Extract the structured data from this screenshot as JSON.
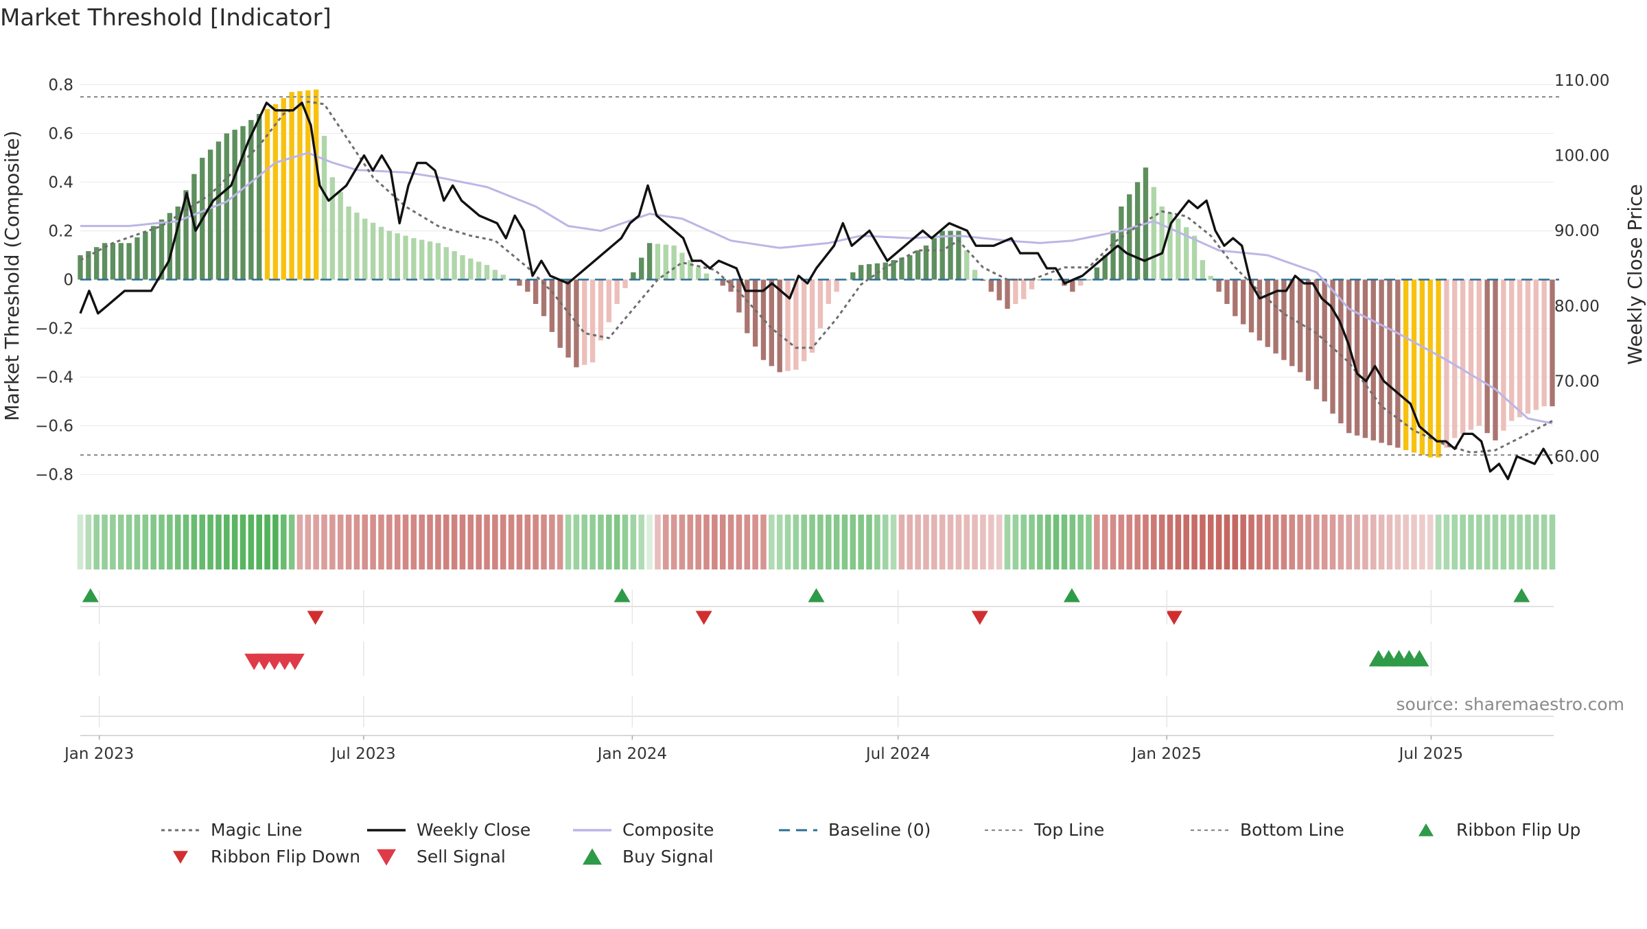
{
  "chart_data": {
    "type": "bar",
    "title": "Market Threshold [Indicator]",
    "ylabel": "Market Threshold (Composite)",
    "y2label": "Weekly Close Price",
    "ylim": [
      -0.88,
      0.88
    ],
    "y2lim": [
      55.0,
      112.0
    ],
    "yticks": [
      0.8,
      0.6,
      0.4,
      0.2,
      0,
      -0.2,
      -0.4,
      -0.6,
      -0.8
    ],
    "ytick_labels": [
      "0.8",
      "0.6",
      "0.4",
      "0.2",
      "0",
      "−0.2",
      "−0.4",
      "−0.6",
      "−0.8"
    ],
    "y2ticks": [
      110,
      100,
      90,
      80,
      70,
      60
    ],
    "y2tick_labels": [
      "110.00",
      "100.00",
      "90.00",
      "80.00",
      "70.00",
      "60.00"
    ],
    "x_date_range": [
      "2022-12-19",
      "2025-09-22"
    ],
    "xticks": [
      {
        "date": "2023-01-01",
        "label": "Jan 2023"
      },
      {
        "date": "2023-07-01",
        "label": "Jul 2023"
      },
      {
        "date": "2024-01-01",
        "label": "Jan 2024"
      },
      {
        "date": "2024-07-01",
        "label": "Jul 2024"
      },
      {
        "date": "2025-01-01",
        "label": "Jan 2025"
      },
      {
        "date": "2025-07-01",
        "label": "Jul 2025"
      }
    ],
    "top_line": 0.75,
    "bottom_line": -0.72,
    "baseline": 0,
    "composite_anchors": [
      [
        0,
        0.1
      ],
      [
        3,
        0.15
      ],
      [
        6,
        0.15
      ],
      [
        9,
        0.22
      ],
      [
        12,
        0.3
      ],
      [
        15,
        0.5
      ],
      [
        18,
        0.6
      ],
      [
        20,
        0.63
      ],
      [
        22,
        0.68
      ],
      [
        24,
        0.72
      ],
      [
        26,
        0.77
      ],
      [
        29,
        0.78
      ],
      [
        30,
        0.59
      ],
      [
        31,
        0.42
      ],
      [
        33,
        0.3
      ],
      [
        35,
        0.25
      ],
      [
        38,
        0.2
      ],
      [
        41,
        0.17
      ],
      [
        44,
        0.15
      ],
      [
        47,
        0.1
      ],
      [
        50,
        0.06
      ],
      [
        53,
        0.0
      ],
      [
        55,
        -0.05
      ],
      [
        57,
        -0.15
      ],
      [
        59,
        -0.28
      ],
      [
        61,
        -0.36
      ],
      [
        63,
        -0.34
      ],
      [
        64,
        -0.25
      ],
      [
        66,
        -0.1
      ],
      [
        68,
        0.03
      ],
      [
        70,
        0.15
      ],
      [
        73,
        0.14
      ],
      [
        76,
        0.05
      ],
      [
        78,
        0.0
      ],
      [
        80,
        -0.05
      ],
      [
        82,
        -0.22
      ],
      [
        84,
        -0.33
      ],
      [
        86,
        -0.38
      ],
      [
        88,
        -0.37
      ],
      [
        90,
        -0.3
      ],
      [
        92,
        -0.1
      ],
      [
        94,
        0.0
      ],
      [
        96,
        0.06
      ],
      [
        99,
        0.07
      ],
      [
        102,
        0.1
      ],
      [
        104,
        0.14
      ],
      [
        106,
        0.2
      ],
      [
        108,
        0.2
      ],
      [
        110,
        0.04
      ],
      [
        112,
        -0.05
      ],
      [
        114,
        -0.12
      ],
      [
        116,
        -0.08
      ],
      [
        118,
        0.0
      ],
      [
        120,
        0.0
      ],
      [
        122,
        -0.05
      ],
      [
        124,
        0.0
      ],
      [
        126,
        0.1
      ],
      [
        128,
        0.3
      ],
      [
        130,
        0.4
      ],
      [
        131,
        0.46
      ],
      [
        133,
        0.3
      ],
      [
        135,
        0.25
      ],
      [
        137,
        0.18
      ],
      [
        138,
        0.08
      ],
      [
        140,
        -0.05
      ],
      [
        142,
        -0.15
      ],
      [
        145,
        -0.25
      ],
      [
        148,
        -0.33
      ],
      [
        150,
        -0.38
      ],
      [
        152,
        -0.45
      ],
      [
        154,
        -0.55
      ],
      [
        156,
        -0.63
      ],
      [
        158,
        -0.65
      ],
      [
        160,
        -0.67
      ],
      [
        163,
        -0.7
      ],
      [
        166,
        -0.73
      ],
      [
        167,
        -0.73
      ],
      [
        169,
        -0.65
      ],
      [
        172,
        -0.6
      ],
      [
        174,
        -0.66
      ],
      [
        176,
        -0.58
      ],
      [
        178,
        -0.55
      ],
      [
        180,
        -0.52
      ]
    ],
    "composite_line_anchors": [
      [
        0,
        0.22
      ],
      [
        6,
        0.22
      ],
      [
        12,
        0.24
      ],
      [
        18,
        0.32
      ],
      [
        24,
        0.48
      ],
      [
        28,
        0.52
      ],
      [
        31,
        0.48
      ],
      [
        34,
        0.45
      ],
      [
        40,
        0.44
      ],
      [
        44,
        0.42
      ],
      [
        50,
        0.38
      ],
      [
        56,
        0.3
      ],
      [
        60,
        0.22
      ],
      [
        64,
        0.2
      ],
      [
        70,
        0.27
      ],
      [
        74,
        0.25
      ],
      [
        80,
        0.16
      ],
      [
        86,
        0.13
      ],
      [
        92,
        0.15
      ],
      [
        96,
        0.18
      ],
      [
        102,
        0.17
      ],
      [
        108,
        0.18
      ],
      [
        114,
        0.16
      ],
      [
        118,
        0.15
      ],
      [
        122,
        0.16
      ],
      [
        128,
        0.2
      ],
      [
        132,
        0.24
      ],
      [
        136,
        0.18
      ],
      [
        140,
        0.12
      ],
      [
        146,
        0.1
      ],
      [
        152,
        0.03
      ],
      [
        156,
        -0.12
      ],
      [
        162,
        -0.22
      ],
      [
        168,
        -0.33
      ],
      [
        174,
        -0.45
      ],
      [
        178,
        -0.57
      ],
      [
        181,
        -0.59
      ]
    ],
    "magic_line_anchors": [
      [
        0,
        0.08
      ],
      [
        4,
        0.15
      ],
      [
        10,
        0.22
      ],
      [
        16,
        0.35
      ],
      [
        22,
        0.55
      ],
      [
        25,
        0.68
      ],
      [
        28,
        0.73
      ],
      [
        30,
        0.72
      ],
      [
        32,
        0.62
      ],
      [
        36,
        0.42
      ],
      [
        40,
        0.3
      ],
      [
        44,
        0.22
      ],
      [
        48,
        0.18
      ],
      [
        51,
        0.16
      ],
      [
        55,
        0.05
      ],
      [
        58,
        -0.05
      ],
      [
        62,
        -0.22
      ],
      [
        65,
        -0.24
      ],
      [
        68,
        -0.12
      ],
      [
        71,
        0.0
      ],
      [
        74,
        0.07
      ],
      [
        78,
        0.04
      ],
      [
        81,
        -0.05
      ],
      [
        85,
        -0.2
      ],
      [
        88,
        -0.28
      ],
      [
        90,
        -0.28
      ],
      [
        93,
        -0.16
      ],
      [
        96,
        -0.02
      ],
      [
        99,
        0.05
      ],
      [
        103,
        0.12
      ],
      [
        106,
        0.12
      ],
      [
        108,
        0.16
      ],
      [
        111,
        0.05
      ],
      [
        114,
        0.0
      ],
      [
        117,
        0.0
      ],
      [
        121,
        0.05
      ],
      [
        124,
        0.05
      ],
      [
        127,
        0.15
      ],
      [
        130,
        0.22
      ],
      [
        133,
        0.28
      ],
      [
        136,
        0.26
      ],
      [
        139,
        0.18
      ],
      [
        142,
        0.05
      ],
      [
        145,
        -0.05
      ],
      [
        148,
        -0.14
      ],
      [
        152,
        -0.22
      ],
      [
        156,
        -0.34
      ],
      [
        160,
        -0.52
      ],
      [
        164,
        -0.62
      ],
      [
        168,
        -0.68
      ],
      [
        171,
        -0.71
      ],
      [
        174,
        -0.7
      ],
      [
        177,
        -0.65
      ],
      [
        181,
        -0.58
      ]
    ],
    "weekly_close_anchors": [
      [
        0,
        79
      ],
      [
        1,
        82
      ],
      [
        2,
        79
      ],
      [
        3,
        80
      ],
      [
        5,
        82
      ],
      [
        8,
        82
      ],
      [
        10,
        86
      ],
      [
        12,
        95
      ],
      [
        13,
        90
      ],
      [
        15,
        94
      ],
      [
        17,
        96
      ],
      [
        19,
        102
      ],
      [
        21,
        107
      ],
      [
        22,
        106
      ],
      [
        24,
        106
      ],
      [
        25,
        107
      ],
      [
        26,
        104
      ],
      [
        27,
        96
      ],
      [
        28,
        94
      ],
      [
        30,
        96
      ],
      [
        32,
        100
      ],
      [
        33,
        98
      ],
      [
        34,
        100
      ],
      [
        35,
        98
      ],
      [
        36,
        91
      ],
      [
        37,
        96
      ],
      [
        38,
        99
      ],
      [
        39,
        99
      ],
      [
        40,
        98
      ],
      [
        41,
        94
      ],
      [
        42,
        96
      ],
      [
        43,
        94
      ],
      [
        45,
        92
      ],
      [
        47,
        91
      ],
      [
        48,
        89
      ],
      [
        49,
        92
      ],
      [
        50,
        90
      ],
      [
        51,
        84
      ],
      [
        52,
        86
      ],
      [
        53,
        84
      ],
      [
        55,
        83
      ],
      [
        57,
        85
      ],
      [
        59,
        87
      ],
      [
        61,
        89
      ],
      [
        62,
        91
      ],
      [
        63,
        92
      ],
      [
        64,
        96
      ],
      [
        65,
        92
      ],
      [
        67,
        90
      ],
      [
        68,
        89
      ],
      [
        69,
        86
      ],
      [
        70,
        86
      ],
      [
        71,
        85
      ],
      [
        72,
        86
      ],
      [
        74,
        85
      ],
      [
        75,
        82
      ],
      [
        77,
        82
      ],
      [
        78,
        83
      ],
      [
        80,
        81
      ],
      [
        81,
        84
      ],
      [
        82,
        83
      ],
      [
        83,
        85
      ],
      [
        85,
        88
      ],
      [
        86,
        91
      ],
      [
        87,
        88
      ],
      [
        88,
        89
      ],
      [
        89,
        90
      ],
      [
        90,
        88
      ],
      [
        91,
        86
      ],
      [
        93,
        88
      ],
      [
        95,
        90
      ],
      [
        96,
        89
      ],
      [
        98,
        91
      ],
      [
        100,
        90
      ],
      [
        101,
        88
      ],
      [
        103,
        88
      ],
      [
        105,
        89
      ],
      [
        106,
        87
      ],
      [
        108,
        87
      ],
      [
        109,
        85
      ],
      [
        110,
        85
      ],
      [
        111,
        83
      ],
      [
        113,
        84
      ],
      [
        115,
        86
      ],
      [
        117,
        88
      ],
      [
        118,
        87
      ],
      [
        120,
        86
      ],
      [
        122,
        87
      ],
      [
        123,
        91
      ],
      [
        125,
        94
      ],
      [
        126,
        93
      ],
      [
        127,
        94
      ],
      [
        128,
        90
      ],
      [
        129,
        88
      ],
      [
        130,
        89
      ],
      [
        131,
        88
      ],
      [
        132,
        83
      ],
      [
        133,
        81
      ],
      [
        135,
        82
      ],
      [
        136,
        82
      ],
      [
        137,
        84
      ],
      [
        138,
        83
      ],
      [
        139,
        83
      ],
      [
        140,
        81
      ],
      [
        141,
        80
      ],
      [
        142,
        78
      ],
      [
        143,
        75
      ],
      [
        144,
        71
      ],
      [
        145,
        70
      ],
      [
        146,
        72
      ],
      [
        147,
        70
      ],
      [
        148,
        69
      ],
      [
        149,
        68
      ],
      [
        150,
        67
      ],
      [
        151,
        64
      ],
      [
        152,
        63
      ],
      [
        153,
        62
      ],
      [
        154,
        62
      ],
      [
        155,
        61
      ],
      [
        156,
        63
      ],
      [
        157,
        63
      ],
      [
        158,
        62
      ],
      [
        159,
        58
      ],
      [
        160,
        59
      ],
      [
        161,
        57
      ],
      [
        162,
        60
      ],
      [
        164,
        59
      ],
      [
        165,
        61
      ],
      [
        166,
        59
      ]
    ],
    "ribbon_anchors": [
      [
        0,
        0.1
      ],
      [
        2,
        0.45
      ],
      [
        8,
        0.55
      ],
      [
        16,
        0.8
      ],
      [
        24,
        0.9
      ],
      [
        26,
        0.6
      ],
      [
        27,
        -0.4
      ],
      [
        33,
        -0.55
      ],
      [
        45,
        -0.7
      ],
      [
        56,
        -0.65
      ],
      [
        59,
        -0.55
      ],
      [
        60,
        0.4
      ],
      [
        66,
        0.6
      ],
      [
        69,
        0.3
      ],
      [
        72,
        -0.5
      ],
      [
        78,
        -0.65
      ],
      [
        84,
        -0.55
      ],
      [
        85,
        0.3
      ],
      [
        90,
        0.55
      ],
      [
        97,
        0.6
      ],
      [
        100,
        0.3
      ],
      [
        101,
        -0.35
      ],
      [
        110,
        -0.25
      ],
      [
        113,
        -0.15
      ],
      [
        114,
        0.4
      ],
      [
        120,
        0.7
      ],
      [
        124,
        0.55
      ],
      [
        125,
        -0.55
      ],
      [
        135,
        -0.85
      ],
      [
        142,
        -0.9
      ],
      [
        147,
        -0.7
      ],
      [
        155,
        -0.45
      ],
      [
        162,
        -0.2
      ],
      [
        166,
        -0.1
      ],
      [
        167,
        0.3
      ],
      [
        170,
        0.4
      ]
    ],
    "ribbon_flip_up": [
      "2022-12-26",
      "2023-12-25",
      "2024-05-06",
      "2024-10-28",
      "2025-09-01"
    ],
    "ribbon_flip_down": [
      "2023-05-29",
      "2024-02-19",
      "2024-08-26",
      "2025-01-06"
    ],
    "sell_signal": [
      "2023-04-17",
      "2023-04-24",
      "2023-05-01",
      "2023-05-08",
      "2023-05-15"
    ],
    "buy_signal": [
      "2025-05-26",
      "2025-06-02",
      "2025-06-09",
      "2025-06-16",
      "2025-06-23"
    ],
    "source": "source: sharemaestro.com",
    "legend": [
      {
        "key": "magic",
        "label": "Magic Line"
      },
      {
        "key": "close",
        "label": "Weekly Close"
      },
      {
        "key": "composite",
        "label": "Composite"
      },
      {
        "key": "baseline",
        "label": "Baseline (0)"
      },
      {
        "key": "top",
        "label": "Top Line"
      },
      {
        "key": "bottom",
        "label": "Bottom Line"
      },
      {
        "key": "flipup",
        "label": "Ribbon Flip Up"
      },
      {
        "key": "flipdown",
        "label": "Ribbon Flip Down"
      },
      {
        "key": "sell",
        "label": "Sell Signal"
      },
      {
        "key": "buy",
        "label": "Buy Signal"
      }
    ],
    "colors": {
      "bar_pos_dark": "#5e8f5e",
      "bar_pos_light": "#afd6a8",
      "bar_neg_dark": "#aa7570",
      "bar_neg_light": "#ecbfba",
      "bar_extreme": "#f7c20f",
      "close": "#111111",
      "composite": "#bbb6e6",
      "magic": "#6e6e6e",
      "baseline": "#2d6e96",
      "threshold": "#8a8a8a",
      "flip_up": "#2f9a48",
      "flip_down": "#d12f2f",
      "sell": "#df3a48",
      "buy": "#2f9a48",
      "grid": "#ececec"
    }
  }
}
